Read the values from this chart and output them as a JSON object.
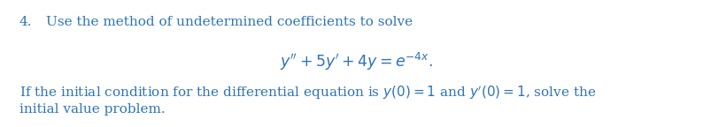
{
  "background_color": "#ffffff",
  "text_color": "#2e74b5",
  "fig_width": 8.04,
  "fig_height": 1.44,
  "dpi": 100,
  "number": "4.",
  "text1": "Use the method of undetermined coefficients to solve",
  "equation": "$y'' + 5y' + 4y = e^{-4x}.$",
  "line3": "If the initial condition for the differential equation is $y(0) = 1$ and $y'(0) = 1$, solve the",
  "line4": "initial value problem.",
  "fontsize_main": 11.0,
  "fontsize_eq": 12.5
}
